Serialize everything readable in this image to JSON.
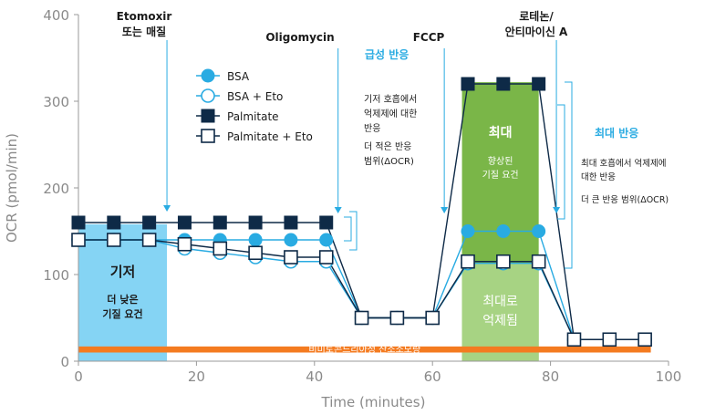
{
  "chart_data": {
    "type": "line",
    "xlabel": "Time (minutes)",
    "ylabel": "OCR (pmol/min)",
    "xlim": [
      0,
      100
    ],
    "ylim": [
      0,
      400
    ],
    "xticks": [
      0,
      20,
      40,
      60,
      80,
      100
    ],
    "yticks": [
      0,
      100,
      200,
      300,
      400
    ],
    "grid": false,
    "legend_position": "top-center",
    "x": [
      0,
      6,
      12,
      18,
      24,
      30,
      36,
      42,
      48,
      54,
      60,
      66,
      72,
      78,
      84,
      90,
      96
    ],
    "series": [
      {
        "name": "BSA",
        "marker": "filled-circle",
        "color": "#29abe2",
        "values": [
          140,
          140,
          140,
          140,
          140,
          140,
          140,
          140,
          50,
          50,
          50,
          150,
          150,
          150,
          25,
          25,
          25
        ]
      },
      {
        "name": "BSA + Eto",
        "marker": "open-circle",
        "color": "#29abe2",
        "values": [
          140,
          140,
          140,
          130,
          125,
          120,
          115,
          115,
          50,
          50,
          50,
          113,
          113,
          113,
          25,
          25,
          25
        ]
      },
      {
        "name": "Palmitate",
        "marker": "filled-square",
        "color": "#0e2a47",
        "values": [
          160,
          160,
          160,
          160,
          160,
          160,
          160,
          160,
          50,
          50,
          50,
          320,
          320,
          320,
          25,
          25,
          25
        ]
      },
      {
        "name": "Palmitate + Eto",
        "marker": "open-square",
        "color": "#0e2a47",
        "values": [
          140,
          140,
          140,
          135,
          130,
          125,
          120,
          120,
          50,
          50,
          50,
          115,
          115,
          115,
          25,
          25,
          25
        ]
      }
    ],
    "regions": {
      "basal": {
        "x": [
          0,
          15
        ],
        "y": [
          0,
          158
        ],
        "color": "#85d4f4",
        "title": "기저",
        "subtitle": "더 낮은\n기질 요건"
      },
      "max": {
        "x": [
          65,
          78
        ],
        "y": [
          0,
          322
        ],
        "color": "#7ab648",
        "title": "최대",
        "subtitle": "향상된\n기질 요건"
      },
      "max_inhib": {
        "x": [
          65,
          78
        ],
        "y": [
          0,
          113
        ],
        "color": "#a7d383",
        "title": "최대로\n억제됨"
      },
      "nonmito": {
        "x": [
          0,
          97
        ],
        "y": [
          10,
          17
        ],
        "color": "#f47b20",
        "label": "비미토콘드리아성 산소소모량"
      }
    },
    "injections": [
      {
        "label": "Etomoxir\n또는 매질",
        "x": 15,
        "color": "#1b1b1b"
      },
      {
        "label": "Oligomycin",
        "x": 44,
        "color": "#1b1b1b"
      },
      {
        "label": "FCCP",
        "x": 62,
        "color": "#1b1b1b"
      },
      {
        "label": "로테논/\n안티마이신 A",
        "x": 81,
        "color": "#1b1b1b"
      }
    ],
    "arrow_color": "#29abe2",
    "annotations": {
      "acute": {
        "title": "급성 반응",
        "color": "#29abe2",
        "text1": "기저 호흡에서\n억제제에 대한\n반응",
        "text2": "더 적은 반응\n범위(ΔOCR)"
      },
      "max_resp": {
        "title": "최대 반응",
        "color": "#29abe2",
        "text1": "최대 호흡에서 억제제에\n대한 반응",
        "text2": "더 큰 반응 범위(ΔOCR)"
      }
    }
  }
}
